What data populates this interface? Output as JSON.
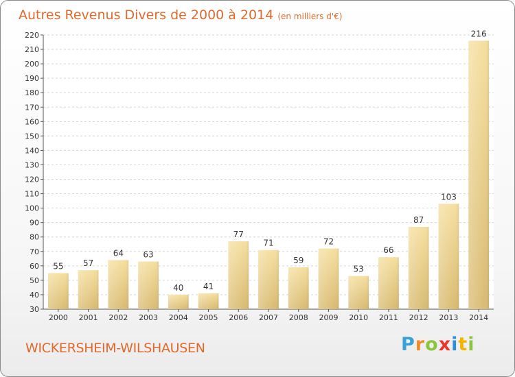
{
  "chart_data": {
    "type": "bar",
    "title": "Autres Revenus Divers de 2000 à 2014",
    "subtitle": "(en milliers d'€)",
    "categories": [
      "2000",
      "2001",
      "2002",
      "2003",
      "2004",
      "2005",
      "2006",
      "2007",
      "2008",
      "2009",
      "2010",
      "2011",
      "2012",
      "2013",
      "2014"
    ],
    "values": [
      55,
      57,
      64,
      63,
      40,
      41,
      77,
      71,
      59,
      72,
      53,
      66,
      87,
      103,
      216
    ],
    "ylim": [
      30,
      220
    ],
    "ytick_step": 10,
    "grid": true,
    "bar_color_light": "#f5dfa0",
    "bar_color_dark": "#d9bb72"
  },
  "footer": {
    "location": "WICKERSHEIM-WILSHAUSEN",
    "brand_letters": [
      "P",
      "r",
      "o",
      "x",
      "i",
      "t",
      "i"
    ],
    "brand_colors": [
      "#3aa0d8",
      "#f28c28",
      "#8cc63f",
      "#e8382c",
      "#2e8fd8",
      "#f5b400",
      "#8cc63f"
    ]
  }
}
